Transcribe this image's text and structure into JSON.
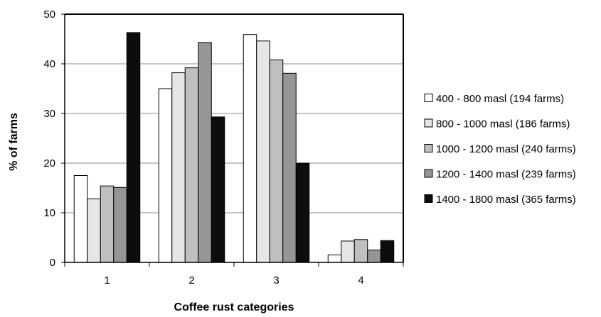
{
  "chart_data": {
    "type": "bar",
    "title": "",
    "xlabel": "Coffee rust categories",
    "ylabel": "% of farms",
    "categories": [
      "1",
      "2",
      "3",
      "4"
    ],
    "ylim": [
      0,
      50
    ],
    "yticks": [
      0,
      10,
      20,
      30,
      40,
      50
    ],
    "grid": true,
    "legend_position": "right",
    "series": [
      {
        "name": "400 - 800 masl (194 farms)",
        "color": "#ffffff",
        "values": [
          17.5,
          35.0,
          45.9,
          1.5
        ]
      },
      {
        "name": "800 - 1000 masl (186 farms)",
        "color": "#e6e6e6",
        "values": [
          12.8,
          38.2,
          44.6,
          4.3
        ]
      },
      {
        "name": "1000 - 1200 masl (240 farms)",
        "color": "#bfbfbf",
        "values": [
          15.4,
          39.2,
          40.8,
          4.6
        ]
      },
      {
        "name": "1200 - 1400 masl (239 farms)",
        "color": "#969696",
        "values": [
          15.1,
          44.3,
          38.1,
          2.5
        ]
      },
      {
        "name": "1400 - 1800 masl (365 farms)",
        "color": "#0d0d0d",
        "values": [
          46.3,
          29.3,
          20.0,
          4.4
        ]
      }
    ]
  }
}
